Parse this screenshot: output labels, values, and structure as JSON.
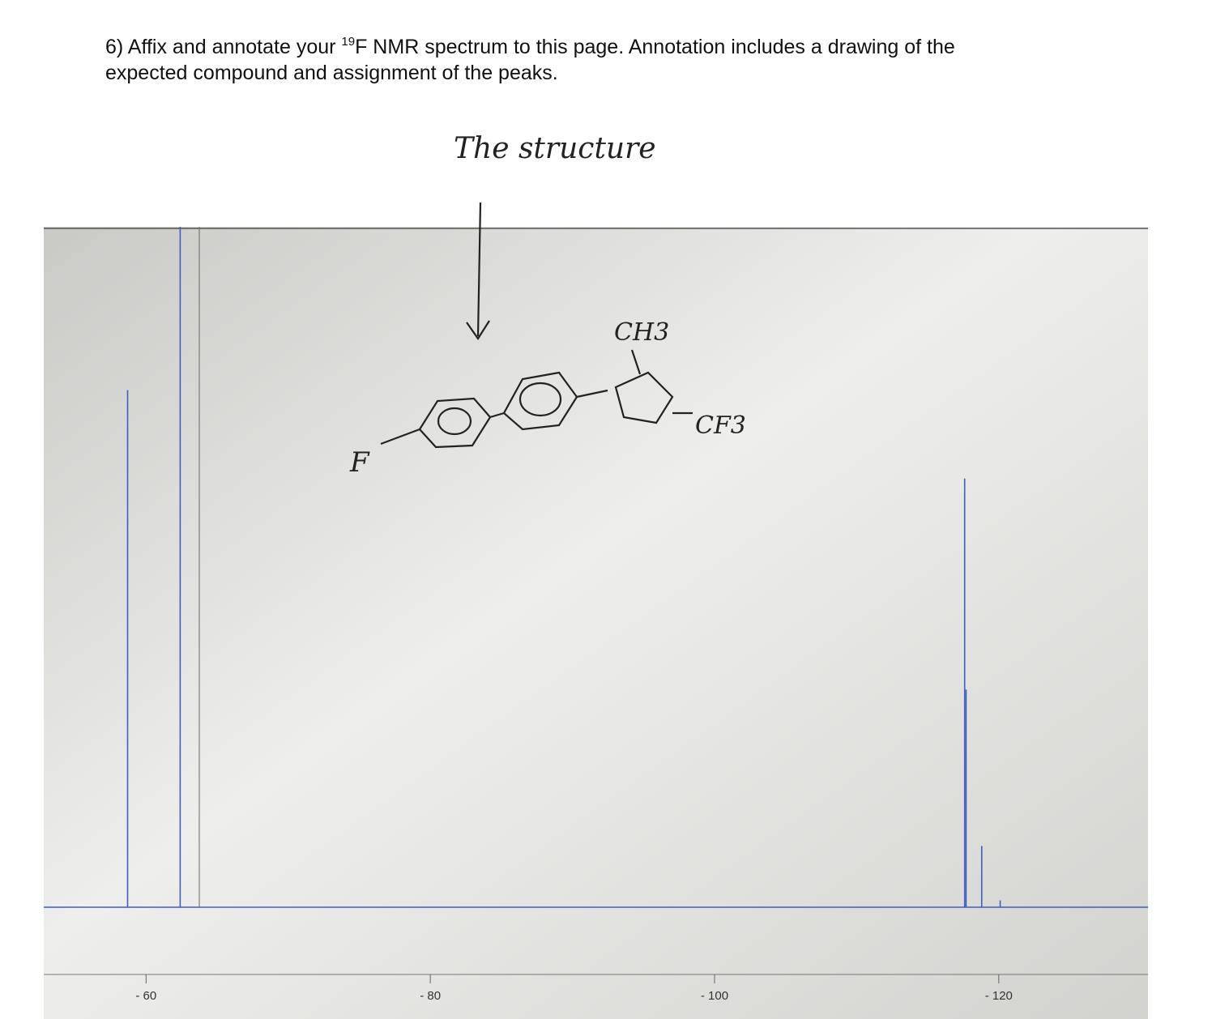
{
  "question": {
    "lead": "6) Affix and annotate your ",
    "superscript": "19",
    "line1_rest": "F NMR spectrum to this page. Annotation includes a drawing of the",
    "line2": "expected compound and assignment of the peaks."
  },
  "annotation": {
    "heading": "The structure",
    "labels": [
      "CH3",
      "CF3",
      "F"
    ]
  },
  "spectrum": {
    "type": "line",
    "x": [
      -58.7,
      -62.4,
      -117.6,
      -117.7,
      -118.8,
      -120.1
    ],
    "values": [
      76,
      100,
      63,
      32,
      9,
      1
    ],
    "color": "#3d5fc4",
    "xlim": [
      -52.8,
      -130.5
    ],
    "ylim": [
      0,
      100
    ],
    "xticks": [
      {
        "value": -60,
        "label": "- 60"
      },
      {
        "value": -80,
        "label": "- 80"
      },
      {
        "value": -100,
        "label": "- 100"
      },
      {
        "value": -120,
        "label": "- 120"
      }
    ]
  }
}
